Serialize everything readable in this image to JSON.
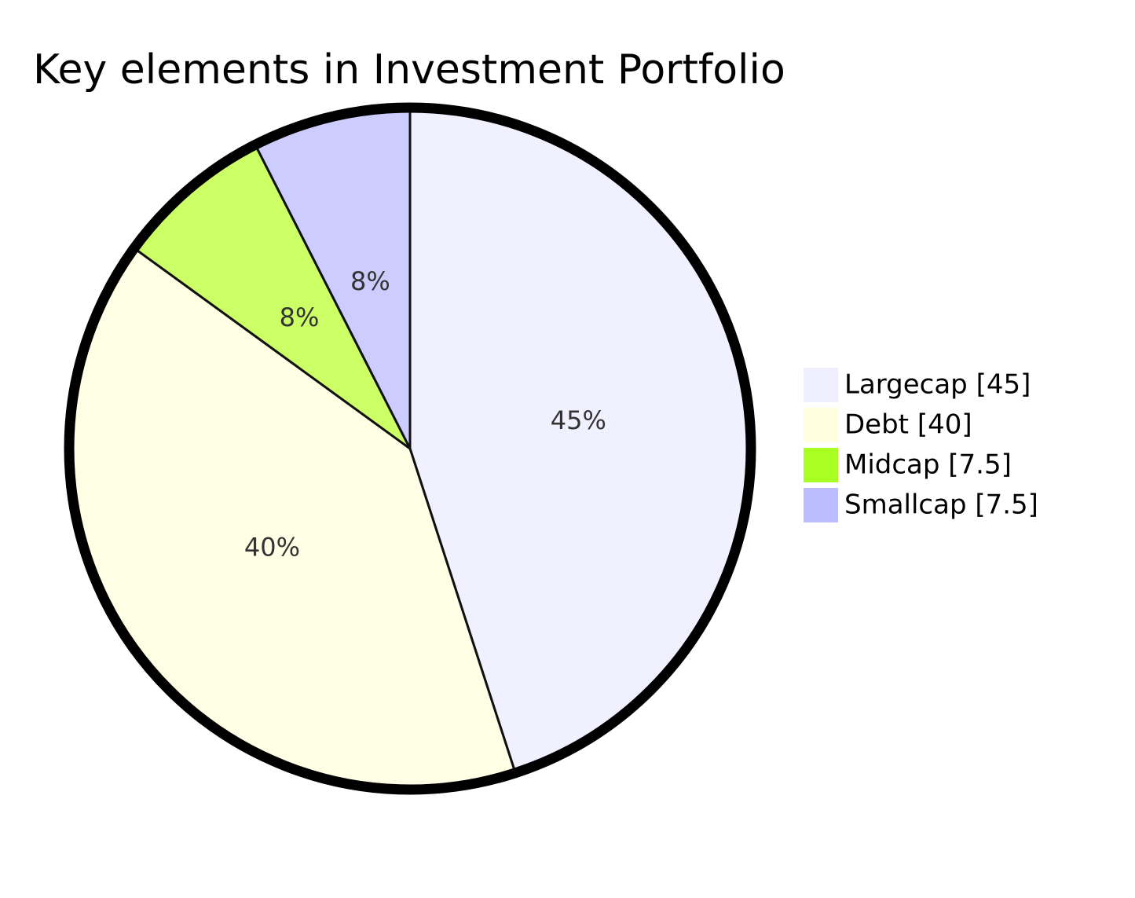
{
  "chart_data": {
    "type": "pie",
    "title": "Key elements in Investment Portfolio",
    "slices": [
      {
        "label": "Largecap",
        "value": 45,
        "percent_label": "45%",
        "legend_label": "Largecap [45]",
        "color": "#f0f0ff"
      },
      {
        "label": "Debt",
        "value": 40,
        "percent_label": "40%",
        "legend_label": "Debt [40]",
        "color": "#ffffe6"
      },
      {
        "label": "Midcap",
        "value": 7.5,
        "percent_label": "8%",
        "legend_label": "Midcap [7.5]",
        "color": "#ccff66"
      },
      {
        "label": "Smallcap",
        "value": 7.5,
        "percent_label": "8%",
        "legend_label": "Smallcap [7.5]",
        "color": "#ccccff"
      }
    ],
    "legend_colors": [
      "#eeeeff",
      "#ffffe0",
      "#aaff22",
      "#bbbbff"
    ],
    "legend_position": "right",
    "outer_stroke": "#000000",
    "slice_stroke": "#111111"
  }
}
